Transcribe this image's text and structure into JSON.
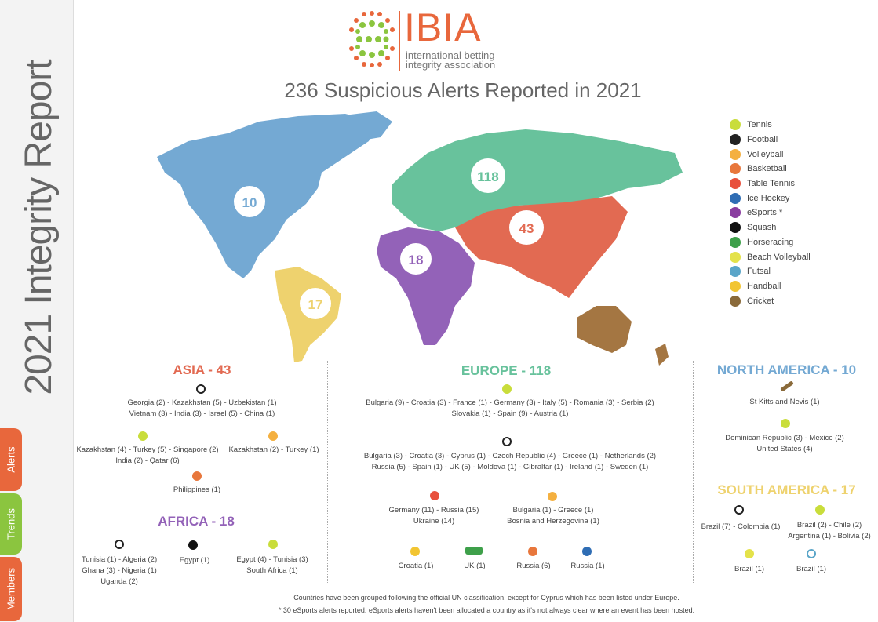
{
  "sidebar": {
    "title": "2021 Integrity Report",
    "tabs": {
      "alerts": "Alerts",
      "trends": "Trends",
      "members": "Members"
    }
  },
  "logo": {
    "name": "IBIA",
    "line1": "international betting",
    "line2": "integrity association"
  },
  "headline": "236 Suspicious Alerts Reported in 2021",
  "map": {
    "europe": "118",
    "asia": "43",
    "north_america": "10",
    "africa": "18",
    "south_america": "17"
  },
  "colors": {
    "europe": "#68c29c",
    "asia": "#e26a52",
    "north_america": "#74a9d3",
    "africa": "#9362b8",
    "south_america": "#eed26e",
    "oceania": "#a47642",
    "orange": "#e8673c",
    "green": "#8bc53f"
  },
  "legend": [
    {
      "label": "Tennis",
      "icon": "tennis-ball-icon",
      "color": "#c9dd3b"
    },
    {
      "label": "Football",
      "icon": "football-icon",
      "color": "#222222"
    },
    {
      "label": "Volleyball",
      "icon": "volleyball-icon",
      "color": "#f4b040"
    },
    {
      "label": "Basketball",
      "icon": "basketball-icon",
      "color": "#e8773c"
    },
    {
      "label": "Table Tennis",
      "icon": "table-tennis-icon",
      "color": "#e8503c"
    },
    {
      "label": "Ice Hockey",
      "icon": "ice-hockey-icon",
      "color": "#2f6db4"
    },
    {
      "label": "eSports *",
      "icon": "gamepad-icon",
      "color": "#8a3da0"
    },
    {
      "label": "Squash",
      "icon": "squash-ball-icon",
      "color": "#111111"
    },
    {
      "label": "Horseracing",
      "icon": "horse-icon",
      "color": "#3ea04a"
    },
    {
      "label": "Beach Volleyball",
      "icon": "beach-volleyball-icon",
      "color": "#e4e24a"
    },
    {
      "label": "Futsal",
      "icon": "futsal-icon",
      "color": "#5aa5c8"
    },
    {
      "label": "Handball",
      "icon": "handball-icon",
      "color": "#f2c532"
    },
    {
      "label": "Cricket",
      "icon": "cricket-bat-icon",
      "color": "#8a6a3a"
    }
  ],
  "asia": {
    "title": "ASIA - 43",
    "football": [
      "Georgia (2) - Kazakhstan (5) - Uzbekistan (1)",
      "Vietnam (3) - India (3) - Israel (5) - China (1)"
    ],
    "tennis": [
      "Kazakhstan (4) - Turkey (5) - Singapore (2)",
      "India (2) - Qatar (6)"
    ],
    "volleyball": "Kazakhstan (2) - Turkey (1)",
    "basketball": "Philippines (1)"
  },
  "africa": {
    "title": "AFRICA - 18",
    "football": [
      "Tunisia (1) - Algeria (2)",
      "Ghana (3) - Nigeria (1)",
      "Uganda (2)"
    ],
    "squash": "Egypt (1)",
    "tennis": [
      "Egypt (4) - Tunisia (3)",
      "South Africa (1)"
    ]
  },
  "europe": {
    "title": "EUROPE - 118",
    "tennis": [
      "Bulgaria (9) - Croatia (3) - France (1) - Germany (3) - Italy (5) - Romania (3) - Serbia (2)",
      "Slovakia (1) - Spain (9) - Austria (1)"
    ],
    "football": [
      "Bulgaria (3) - Croatia (3) - Cyprus (1) - Czech Republic (4) - Greece (1) - Netherlands (2)",
      "Russia (5) - Spain (1) - UK (5) - Moldova (1) - Gibraltar (1) - Ireland (1) - Sweden (1)"
    ],
    "table_tennis": [
      "Germany (11) - Russia (15)",
      "Ukraine (14)"
    ],
    "volleyball": [
      "Bulgaria (1) - Greece (1)",
      "Bosnia and Herzegovina (1)"
    ],
    "handball": "Croatia (1)",
    "horseracing": "UK (1)",
    "basketball": "Russia (6)",
    "ice_hockey": "Russia (1)"
  },
  "north_america": {
    "title": "NORTH AMERICA - 10",
    "cricket": "St Kitts and Nevis (1)",
    "tennis": [
      "Dominican Republic (3) - Mexico (2)",
      "United States (4)"
    ]
  },
  "south_america": {
    "title": "SOUTH AMERICA - 17",
    "football": "Brazil (7) - Colombia (1)",
    "tennis": [
      "Brazil (2) - Chile (2)",
      "Argentina (1) - Bolivia (2)"
    ],
    "beach_volleyball": "Brazil (1)",
    "futsal": "Brazil (1)"
  },
  "footer": {
    "line1": "Countries have been grouped following the official UN classification, except for Cyprus which has been listed under Europe.",
    "line2": "* 30 eSports alerts reported. eSports alerts haven't been allocated a country as it's not always clear where an event has been hosted."
  }
}
